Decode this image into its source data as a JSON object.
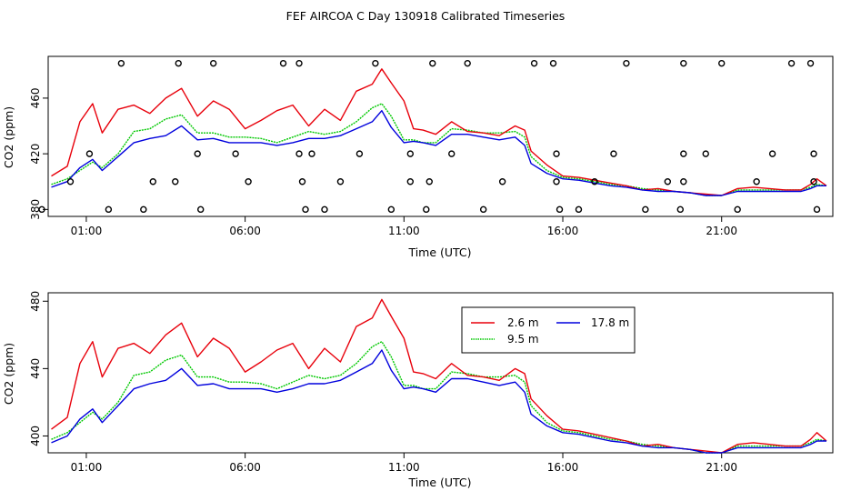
{
  "title": "FEF AIRCOA C  Day 130918  Calibrated Timeseries",
  "colors": {
    "s26": "#e8000b",
    "s95": "#00c800",
    "s178": "#0000dd",
    "axis": "#000000"
  },
  "chart_data": [
    {
      "type": "line",
      "name": "timeseries-with-flags",
      "xlabel": "Time (UTC)",
      "ylabel": "CO2 (ppm)",
      "xlim": [
        -0.2,
        24.5
      ],
      "ylim": [
        375,
        490
      ],
      "xticks": [
        1,
        6,
        11,
        16,
        21
      ],
      "xtick_labels": [
        "01:00",
        "06:00",
        "11:00",
        "16:00",
        "21:00"
      ],
      "yticks": [
        380,
        420,
        460
      ],
      "ytick_labels": [
        "380",
        "420",
        "460"
      ],
      "series": [
        {
          "name": "2.6 m",
          "color": "s26",
          "x": [
            -0.1,
            0.4,
            0.8,
            1.2,
            1.5,
            2.0,
            2.5,
            3.0,
            3.5,
            4.0,
            4.5,
            5.0,
            5.5,
            6.0,
            6.5,
            7.0,
            7.5,
            8.0,
            8.5,
            9.0,
            9.5,
            10.0,
            10.3,
            10.6,
            11.0,
            11.3,
            11.6,
            12.0,
            12.5,
            13.0,
            13.5,
            14.0,
            14.5,
            14.8,
            15.0,
            15.5,
            16.0,
            16.5,
            17.0,
            17.5,
            18.0,
            18.5,
            19.0,
            19.5,
            20.0,
            20.5,
            21.0,
            21.5,
            22.0,
            22.5,
            23.0,
            23.5,
            23.8,
            24.0,
            24.3
          ],
          "values": [
            404,
            411,
            443,
            456,
            435,
            452,
            455,
            449,
            460,
            467,
            447,
            458,
            452,
            438,
            444,
            451,
            455,
            440,
            452,
            444,
            465,
            470,
            481,
            471,
            458,
            438,
            437,
            434,
            443,
            436,
            435,
            433,
            440,
            437,
            422,
            412,
            404,
            403,
            401,
            399,
            397,
            394,
            395,
            393,
            392,
            391,
            390,
            395,
            396,
            395,
            394,
            394,
            398,
            402,
            397
          ]
        },
        {
          "name": "9.5 m",
          "color": "s95",
          "x": [
            -0.1,
            0.4,
            0.8,
            1.2,
            1.5,
            2.0,
            2.5,
            3.0,
            3.5,
            4.0,
            4.5,
            5.0,
            5.5,
            6.0,
            6.5,
            7.0,
            7.5,
            8.0,
            8.5,
            9.0,
            9.5,
            10.0,
            10.3,
            10.6,
            11.0,
            11.3,
            11.6,
            12.0,
            12.5,
            13.0,
            13.5,
            14.0,
            14.5,
            14.8,
            15.0,
            15.5,
            16.0,
            16.5,
            17.0,
            17.5,
            18.0,
            18.5,
            19.0,
            19.5,
            20.0,
            20.5,
            21.0,
            21.5,
            22.0,
            22.5,
            23.0,
            23.5,
            23.8,
            24.0,
            24.3
          ],
          "values": [
            398,
            402,
            408,
            414,
            410,
            420,
            436,
            438,
            445,
            448,
            435,
            435,
            432,
            432,
            431,
            428,
            432,
            436,
            434,
            436,
            443,
            453,
            456,
            447,
            430,
            430,
            428,
            428,
            438,
            437,
            435,
            435,
            436,
            432,
            418,
            408,
            403,
            402,
            400,
            398,
            397,
            395,
            394,
            393,
            392,
            390,
            390,
            394,
            394,
            394,
            394,
            394,
            396,
            398,
            397
          ]
        },
        {
          "name": "17.8 m",
          "color": "s178",
          "x": [
            -0.1,
            0.4,
            0.8,
            1.2,
            1.5,
            2.0,
            2.5,
            3.0,
            3.5,
            4.0,
            4.5,
            5.0,
            5.5,
            6.0,
            6.5,
            7.0,
            7.5,
            8.0,
            8.5,
            9.0,
            9.5,
            10.0,
            10.3,
            10.6,
            11.0,
            11.3,
            11.6,
            12.0,
            12.5,
            13.0,
            13.5,
            14.0,
            14.5,
            14.8,
            15.0,
            15.5,
            16.0,
            16.5,
            17.0,
            17.5,
            18.0,
            18.5,
            19.0,
            19.5,
            20.0,
            20.5,
            21.0,
            21.5,
            22.0,
            22.5,
            23.0,
            23.5,
            23.8,
            24.0,
            24.3
          ],
          "values": [
            396,
            400,
            410,
            416,
            408,
            418,
            428,
            431,
            433,
            440,
            430,
            431,
            428,
            428,
            428,
            426,
            428,
            431,
            431,
            433,
            438,
            443,
            451,
            439,
            428,
            429,
            428,
            426,
            434,
            434,
            432,
            430,
            432,
            426,
            413,
            406,
            402,
            401,
            399,
            397,
            396,
            394,
            393,
            393,
            392,
            390,
            390,
            393,
            393,
            393,
            393,
            393,
            395,
            397,
            397
          ]
        }
      ],
      "flags": [
        {
          "x": 1.1,
          "y": 420
        },
        {
          "x": 2.1,
          "y": 485
        },
        {
          "x": 3.9,
          "y": 485
        },
        {
          "x": 5.0,
          "y": 485
        },
        {
          "x": 7.2,
          "y": 485
        },
        {
          "x": 7.7,
          "y": 485
        },
        {
          "x": 10.1,
          "y": 485
        },
        {
          "x": 11.9,
          "y": 485
        },
        {
          "x": 13.0,
          "y": 485
        },
        {
          "x": 15.1,
          "y": 485
        },
        {
          "x": 15.7,
          "y": 485
        },
        {
          "x": 18.0,
          "y": 485
        },
        {
          "x": 19.8,
          "y": 485
        },
        {
          "x": 21.0,
          "y": 485
        },
        {
          "x": 23.2,
          "y": 485
        },
        {
          "x": 23.8,
          "y": 485
        },
        {
          "x": 0.5,
          "y": 400
        },
        {
          "x": 3.1,
          "y": 400
        },
        {
          "x": 3.8,
          "y": 400
        },
        {
          "x": 6.1,
          "y": 400
        },
        {
          "x": 7.8,
          "y": 400
        },
        {
          "x": 9.0,
          "y": 400
        },
        {
          "x": 11.2,
          "y": 400
        },
        {
          "x": 11.8,
          "y": 400
        },
        {
          "x": 14.1,
          "y": 400
        },
        {
          "x": 15.8,
          "y": 400
        },
        {
          "x": 17.0,
          "y": 400
        },
        {
          "x": 19.3,
          "y": 400
        },
        {
          "x": 19.8,
          "y": 400
        },
        {
          "x": 22.1,
          "y": 400
        },
        {
          "x": 23.9,
          "y": 400
        },
        {
          "x": 4.5,
          "y": 420
        },
        {
          "x": 5.7,
          "y": 420
        },
        {
          "x": 7.7,
          "y": 420
        },
        {
          "x": 8.1,
          "y": 420
        },
        {
          "x": 9.6,
          "y": 420
        },
        {
          "x": 11.2,
          "y": 420
        },
        {
          "x": 12.5,
          "y": 420
        },
        {
          "x": 15.8,
          "y": 420
        },
        {
          "x": 17.6,
          "y": 420
        },
        {
          "x": 19.8,
          "y": 420
        },
        {
          "x": 20.5,
          "y": 420
        },
        {
          "x": 22.6,
          "y": 420
        },
        {
          "x": 23.9,
          "y": 420
        },
        {
          "x": -0.4,
          "y": 380
        },
        {
          "x": 1.7,
          "y": 380
        },
        {
          "x": 2.8,
          "y": 380
        },
        {
          "x": 4.6,
          "y": 380
        },
        {
          "x": 7.9,
          "y": 380
        },
        {
          "x": 8.5,
          "y": 380
        },
        {
          "x": 10.6,
          "y": 380
        },
        {
          "x": 11.7,
          "y": 380
        },
        {
          "x": 13.5,
          "y": 380
        },
        {
          "x": 15.9,
          "y": 380
        },
        {
          "x": 16.5,
          "y": 380
        },
        {
          "x": 18.6,
          "y": 380
        },
        {
          "x": 19.7,
          "y": 380
        },
        {
          "x": 21.5,
          "y": 380
        },
        {
          "x": 24.0,
          "y": 380
        }
      ]
    },
    {
      "type": "line",
      "name": "timeseries-with-legend",
      "xlabel": "Time (UTC)",
      "ylabel": "CO2 (ppm)",
      "xlim": [
        -0.2,
        24.5
      ],
      "ylim": [
        390,
        485
      ],
      "xticks": [
        1,
        6,
        11,
        16,
        21
      ],
      "xtick_labels": [
        "01:00",
        "06:00",
        "11:00",
        "16:00",
        "21:00"
      ],
      "yticks": [
        400,
        440,
        480
      ],
      "ytick_labels": [
        "400",
        "440",
        "480"
      ],
      "legend": {
        "placement": "upper-right-inset",
        "entries": [
          {
            "label": "2.6 m",
            "color": "s26"
          },
          {
            "label": "17.8 m",
            "color": "s178"
          },
          {
            "label": "9.5 m",
            "color": "s95"
          }
        ]
      }
    }
  ]
}
